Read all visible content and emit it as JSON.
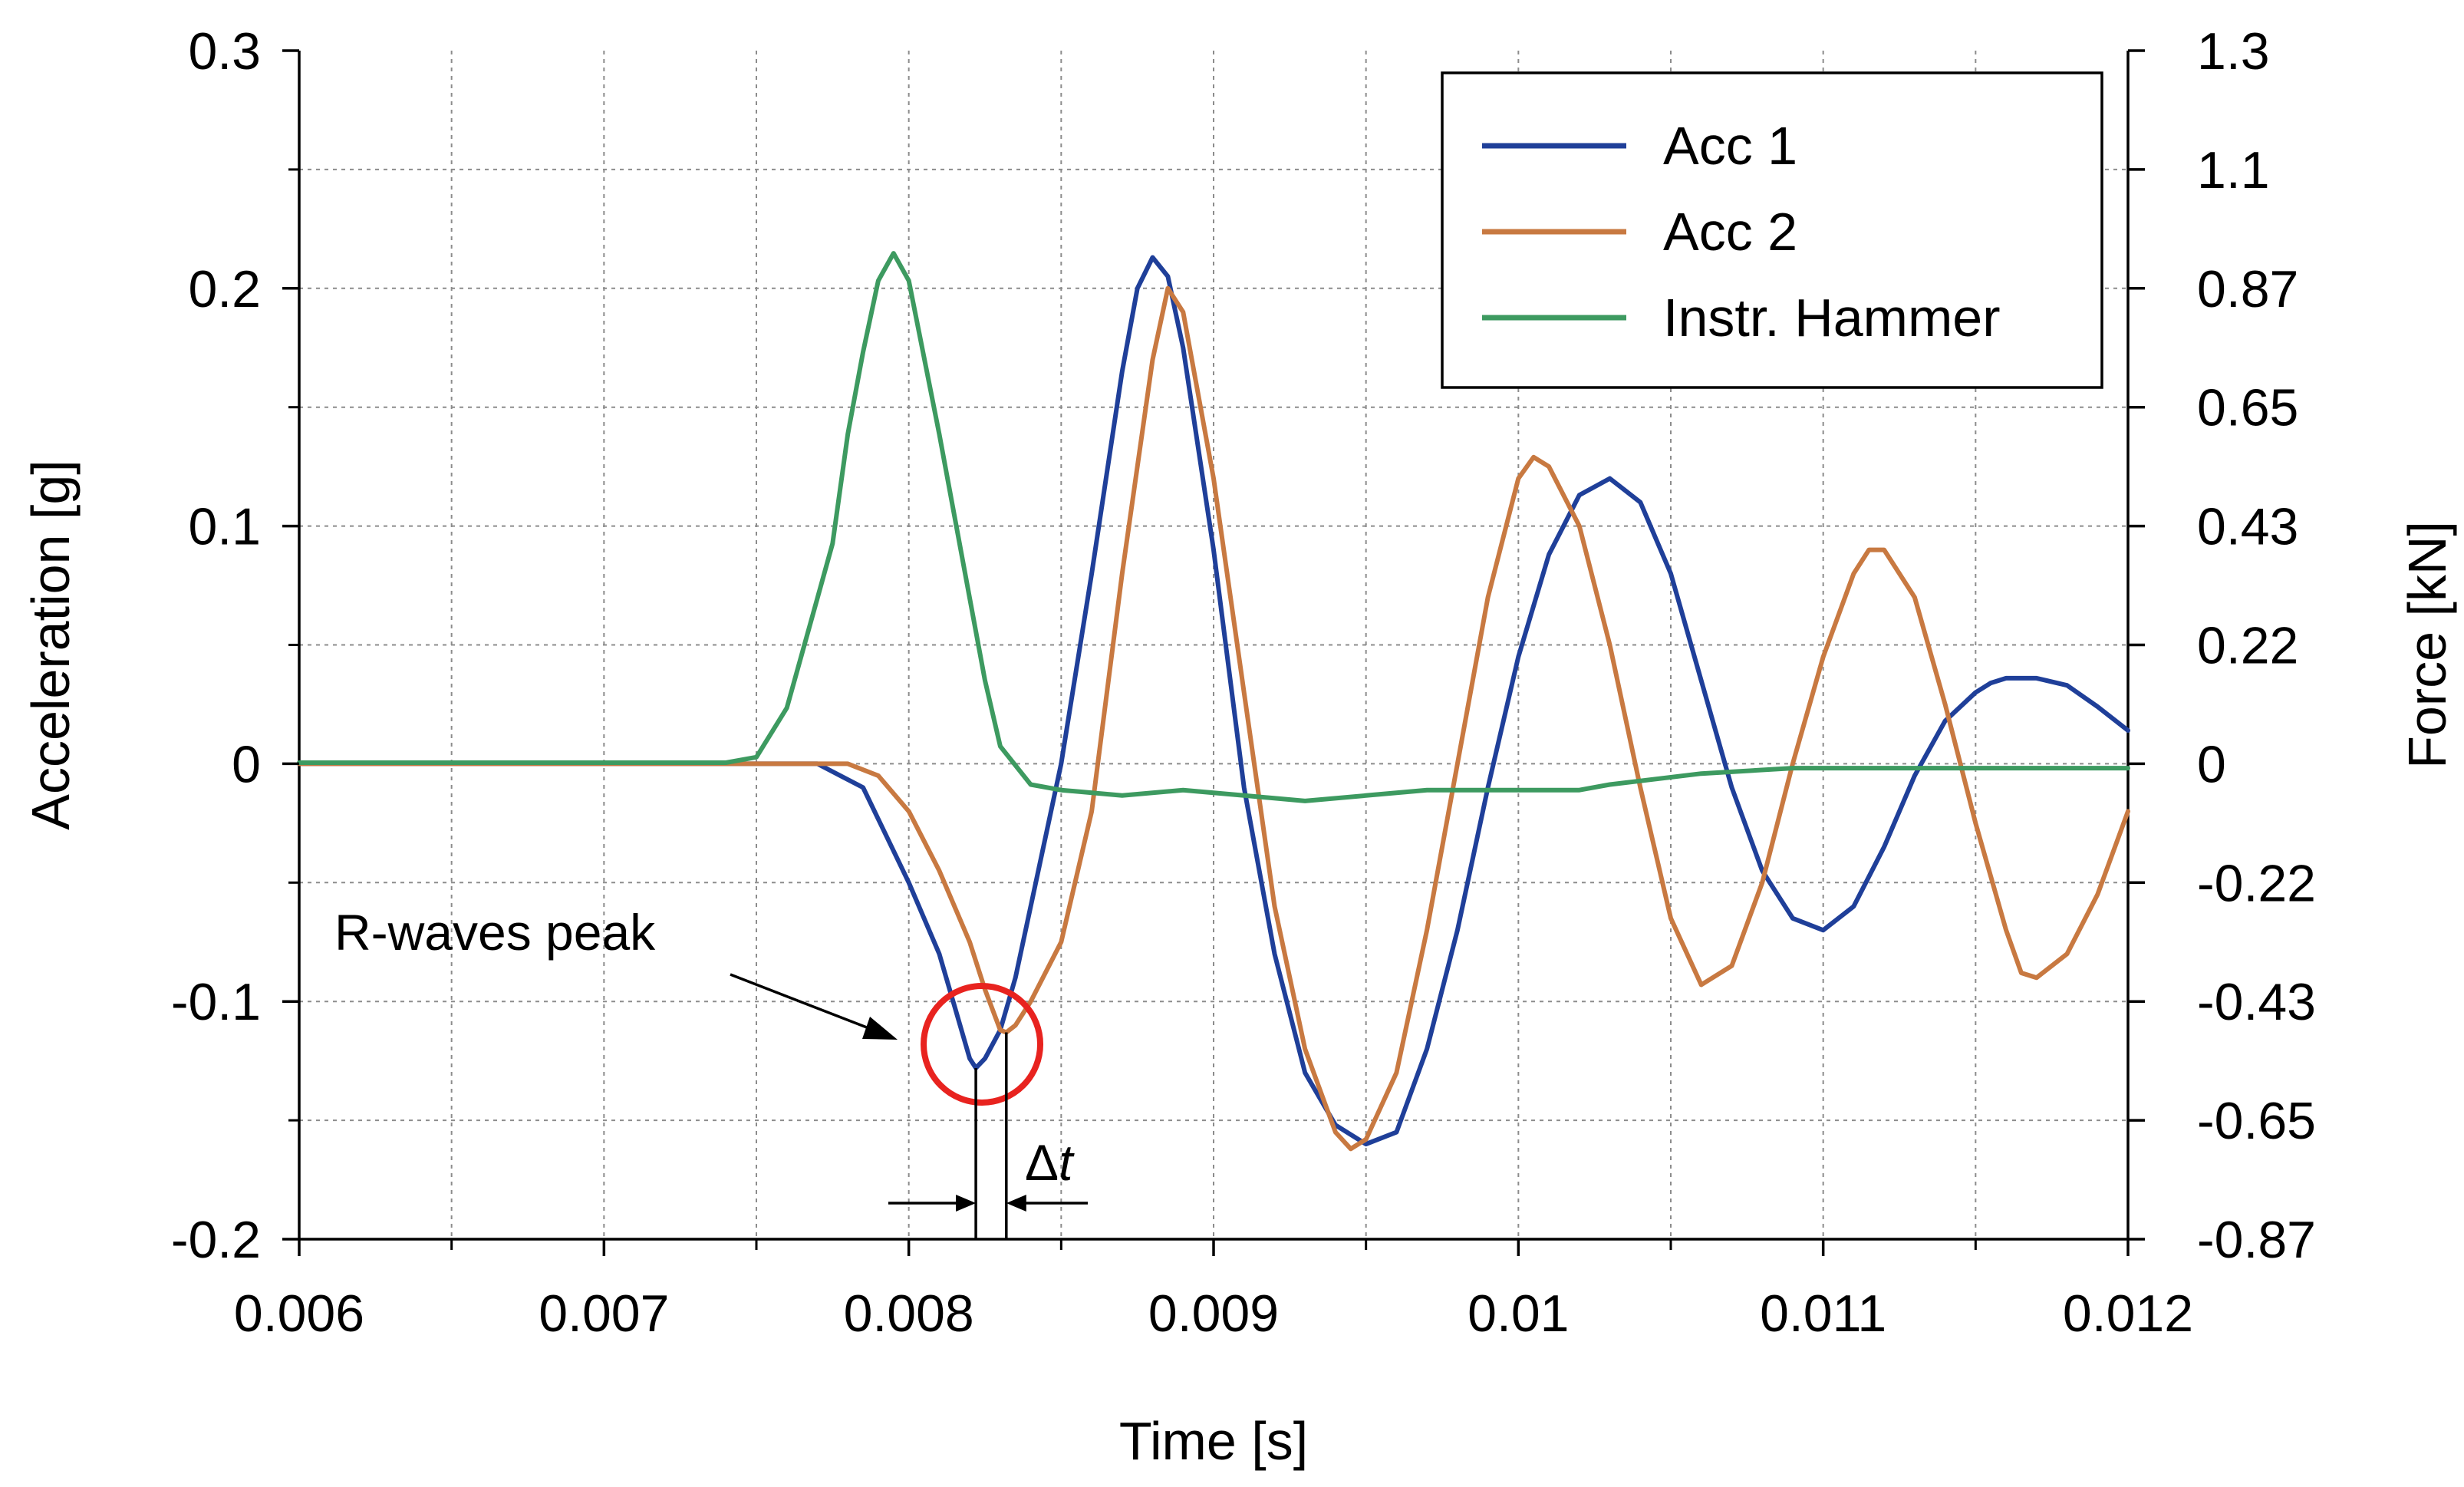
{
  "chart_data": {
    "type": "line",
    "xlabel": "Time [s]",
    "ylabel": "Acceleration [g]",
    "y2label": "Force [kN]",
    "xlim": [
      0.006,
      0.012
    ],
    "ylim": [
      -0.2,
      0.3
    ],
    "y2lim": [
      -0.87,
      1.3
    ],
    "x_ticks": [
      "0.006",
      "0.007",
      "0.008",
      "0.009",
      "0.01",
      "0.011",
      "0.012"
    ],
    "y_ticks": [
      "-0.2",
      "-0.1",
      "0",
      "0.1",
      "0.2",
      "0.3"
    ],
    "y2_ticks": [
      "-0.87",
      "-0.65",
      "-0.43",
      "-0.22",
      "0",
      "0.22",
      "0.43",
      "0.65",
      "0.87",
      "1.1",
      "1.3"
    ],
    "grid": true,
    "legend_position": "top-right",
    "series": [
      {
        "name": "Acc 1",
        "axis": "left",
        "color": "#1f3f99",
        "points": [
          [
            0.006,
            0
          ],
          [
            0.0074,
            0
          ],
          [
            0.0077,
            0
          ],
          [
            0.00785,
            -0.01
          ],
          [
            0.008,
            -0.05
          ],
          [
            0.0081,
            -0.08
          ],
          [
            0.00815,
            -0.102
          ],
          [
            0.0082,
            -0.124
          ],
          [
            0.00822,
            -0.128
          ],
          [
            0.00825,
            -0.124
          ],
          [
            0.0083,
            -0.112
          ],
          [
            0.00835,
            -0.09
          ],
          [
            0.0084,
            -0.06
          ],
          [
            0.0085,
            0
          ],
          [
            0.0086,
            0.08
          ],
          [
            0.0087,
            0.165
          ],
          [
            0.00875,
            0.2
          ],
          [
            0.0088,
            0.213
          ],
          [
            0.00885,
            0.205
          ],
          [
            0.0089,
            0.175
          ],
          [
            0.009,
            0.09
          ],
          [
            0.0091,
            -0.01
          ],
          [
            0.0092,
            -0.08
          ],
          [
            0.0093,
            -0.13
          ],
          [
            0.0094,
            -0.152
          ],
          [
            0.0095,
            -0.16
          ],
          [
            0.0096,
            -0.155
          ],
          [
            0.0097,
            -0.12
          ],
          [
            0.0098,
            -0.07
          ],
          [
            0.0099,
            -0.01
          ],
          [
            0.01,
            0.045
          ],
          [
            0.0101,
            0.088
          ],
          [
            0.0102,
            0.113
          ],
          [
            0.0103,
            0.12
          ],
          [
            0.0104,
            0.11
          ],
          [
            0.0105,
            0.08
          ],
          [
            0.0106,
            0.035
          ],
          [
            0.0107,
            -0.01
          ],
          [
            0.0108,
            -0.045
          ],
          [
            0.0109,
            -0.065
          ],
          [
            0.011,
            -0.07
          ],
          [
            0.0111,
            -0.06
          ],
          [
            0.0112,
            -0.035
          ],
          [
            0.0113,
            -0.005
          ],
          [
            0.0114,
            0.018
          ],
          [
            0.0115,
            0.03
          ],
          [
            0.01155,
            0.034
          ],
          [
            0.0116,
            0.036
          ],
          [
            0.0117,
            0.036
          ],
          [
            0.0118,
            0.033
          ],
          [
            0.0119,
            0.024
          ],
          [
            0.012,
            0.014
          ]
        ]
      },
      {
        "name": "Acc 2",
        "axis": "left",
        "color": "#c87941",
        "points": [
          [
            0.006,
            0
          ],
          [
            0.0075,
            0
          ],
          [
            0.0078,
            0
          ],
          [
            0.0079,
            -0.005
          ],
          [
            0.008,
            -0.02
          ],
          [
            0.0081,
            -0.045
          ],
          [
            0.0082,
            -0.075
          ],
          [
            0.00825,
            -0.095
          ],
          [
            0.0083,
            -0.112
          ],
          [
            0.00832,
            -0.113
          ],
          [
            0.00835,
            -0.11
          ],
          [
            0.0084,
            -0.1
          ],
          [
            0.0085,
            -0.075
          ],
          [
            0.0086,
            -0.02
          ],
          [
            0.0087,
            0.08
          ],
          [
            0.0088,
            0.17
          ],
          [
            0.00885,
            0.2
          ],
          [
            0.0089,
            0.19
          ],
          [
            0.009,
            0.12
          ],
          [
            0.0091,
            0.03
          ],
          [
            0.0092,
            -0.06
          ],
          [
            0.0093,
            -0.12
          ],
          [
            0.0094,
            -0.155
          ],
          [
            0.00945,
            -0.162
          ],
          [
            0.0095,
            -0.158
          ],
          [
            0.0096,
            -0.13
          ],
          [
            0.0097,
            -0.07
          ],
          [
            0.0098,
            0
          ],
          [
            0.0099,
            0.07
          ],
          [
            0.01,
            0.12
          ],
          [
            0.01005,
            0.129
          ],
          [
            0.0101,
            0.125
          ],
          [
            0.0102,
            0.1
          ],
          [
            0.0103,
            0.05
          ],
          [
            0.0104,
            -0.01
          ],
          [
            0.0105,
            -0.065
          ],
          [
            0.0106,
            -0.093
          ],
          [
            0.0107,
            -0.085
          ],
          [
            0.0108,
            -0.05
          ],
          [
            0.0109,
            0
          ],
          [
            0.011,
            0.045
          ],
          [
            0.0111,
            0.08
          ],
          [
            0.01115,
            0.09
          ],
          [
            0.0112,
            0.09
          ],
          [
            0.0113,
            0.07
          ],
          [
            0.0114,
            0.025
          ],
          [
            0.0115,
            -0.025
          ],
          [
            0.0116,
            -0.07
          ],
          [
            0.01165,
            -0.088
          ],
          [
            0.0117,
            -0.09
          ],
          [
            0.0118,
            -0.08
          ],
          [
            0.0119,
            -0.055
          ],
          [
            0.012,
            -0.02
          ]
        ]
      },
      {
        "name": "Instr. Hammer",
        "axis": "right",
        "color": "#3d9a60",
        "points": [
          [
            0.006,
            0
          ],
          [
            0.0074,
            0
          ],
          [
            0.0075,
            0.01
          ],
          [
            0.0076,
            0.1
          ],
          [
            0.0077,
            0.3
          ],
          [
            0.00775,
            0.4
          ],
          [
            0.0078,
            0.6
          ],
          [
            0.00785,
            0.75
          ],
          [
            0.0079,
            0.88
          ],
          [
            0.00795,
            0.93
          ],
          [
            0.008,
            0.88
          ],
          [
            0.0081,
            0.6
          ],
          [
            0.0082,
            0.3
          ],
          [
            0.00825,
            0.15
          ],
          [
            0.0083,
            0.03
          ],
          [
            0.0084,
            -0.04
          ],
          [
            0.0085,
            -0.05
          ],
          [
            0.0087,
            -0.06
          ],
          [
            0.0089,
            -0.05
          ],
          [
            0.0091,
            -0.06
          ],
          [
            0.0093,
            -0.07
          ],
          [
            0.0095,
            -0.06
          ],
          [
            0.0097,
            -0.05
          ],
          [
            0.01,
            -0.05
          ],
          [
            0.0102,
            -0.05
          ],
          [
            0.0103,
            -0.04
          ],
          [
            0.0106,
            -0.02
          ],
          [
            0.0109,
            -0.01
          ],
          [
            0.0112,
            -0.01
          ],
          [
            0.012,
            -0.01
          ]
        ]
      }
    ],
    "annotations": {
      "peak_label": "R-waves peak",
      "delta_label": "Δt",
      "delta_t_points": [
        0.00822,
        0.00832
      ],
      "circle_center": [
        0.00824,
        -0.118
      ]
    }
  }
}
